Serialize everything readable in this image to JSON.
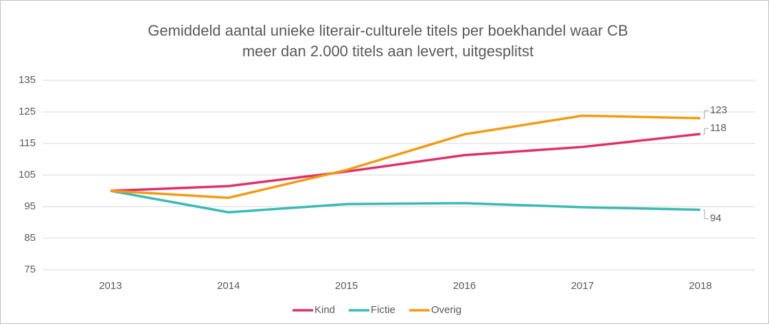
{
  "chart_data": {
    "type": "line",
    "title": [
      "Gemiddeld aantal unieke literair-culturele titels per boekhandel waar CB",
      "meer dan 2.000 titels aan levert, uitgesplitst"
    ],
    "categories": [
      "2013",
      "2014",
      "2015",
      "2016",
      "2017",
      "2018"
    ],
    "series": [
      {
        "name": "Kind",
        "color": "#e0306a",
        "values": [
          100,
          101.5,
          106.1,
          111.3,
          113.9,
          118
        ]
      },
      {
        "name": "Fictie",
        "color": "#3cb9b4",
        "values": [
          100,
          93.2,
          95.8,
          96.1,
          94.8,
          94
        ]
      },
      {
        "name": "Overig",
        "color": "#f39a14",
        "values": [
          100,
          97.8,
          106.6,
          117.9,
          123.8,
          123
        ]
      }
    ],
    "ylim": [
      75,
      135
    ],
    "yticks": [
      75,
      85,
      95,
      105,
      115,
      125,
      135
    ],
    "grid": true,
    "legend": "bottom"
  }
}
